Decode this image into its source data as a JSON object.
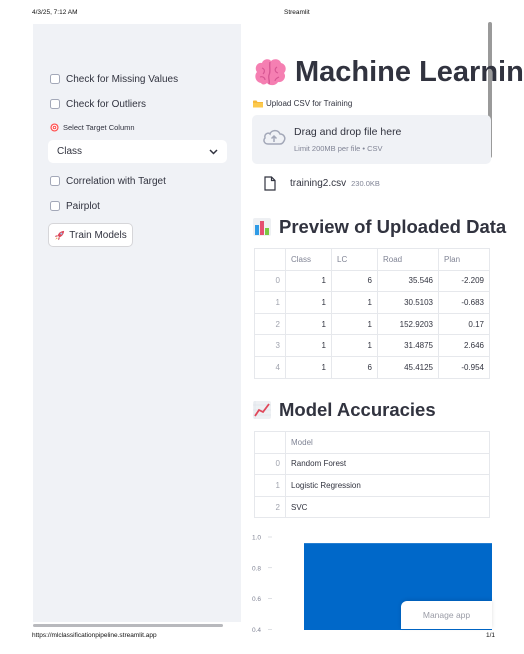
{
  "print": {
    "date": "4/3/25, 7:12 AM",
    "title": "Streamlit",
    "url": "https://mlclassificationpipeline.streamlit.app",
    "page": "1/1"
  },
  "sidebar": {
    "check_missing": "Check for Missing Values",
    "check_outliers": "Check for Outliers",
    "select_target_label": "Select Target Column",
    "select_target_value": "Class",
    "correlation": "Correlation with Target",
    "pairplot": "Pairplot",
    "train_button": "Train Models"
  },
  "main": {
    "title": "Machine Learnin",
    "upload_label": "Upload CSV for Training",
    "dropzone_title": "Drag and drop file here",
    "dropzone_limit": "Limit 200MB per file • CSV",
    "file_name": "training2.csv",
    "file_size": "230.0KB",
    "preview_heading": "Preview of Uploaded Data",
    "accuracies_heading": "Model Accuracies",
    "manage_app": "Manage app"
  },
  "preview_table": {
    "columns": [
      "",
      "Class",
      "LC",
      "Road",
      "Plan"
    ],
    "rows": [
      [
        "0",
        "1",
        "6",
        "35.546",
        "-2.209"
      ],
      [
        "1",
        "1",
        "1",
        "30.5103",
        "-0.683"
      ],
      [
        "2",
        "1",
        "1",
        "152.9203",
        "0.17"
      ],
      [
        "3",
        "1",
        "1",
        "31.4875",
        "2.646"
      ],
      [
        "4",
        "1",
        "6",
        "45.4125",
        "-0.954"
      ]
    ]
  },
  "accuracy_table": {
    "columns": [
      "",
      "Model"
    ],
    "rows": [
      [
        "0",
        "Random Forest"
      ],
      [
        "1",
        "Logistic Regression"
      ],
      [
        "2",
        "SVC"
      ]
    ]
  },
  "chart_data": {
    "type": "bar",
    "y_ticks": [
      "1.0",
      "0.8",
      "0.6",
      "0.4"
    ],
    "ylim": [
      0.35,
      1.0
    ],
    "values": [
      0.96
    ],
    "bar_color": "#0068c9"
  },
  "colors": {
    "sidebar_bg": "#f0f2f6",
    "accent_blue": "#0068c9",
    "text": "#31333f",
    "muted": "#808495"
  },
  "icons": [
    "brain-icon",
    "folder-icon",
    "cloud-upload-icon",
    "file-icon",
    "bar-chart-icon",
    "trend-chart-icon",
    "target-icon",
    "rocket-icon",
    "chevron-down-icon"
  ]
}
